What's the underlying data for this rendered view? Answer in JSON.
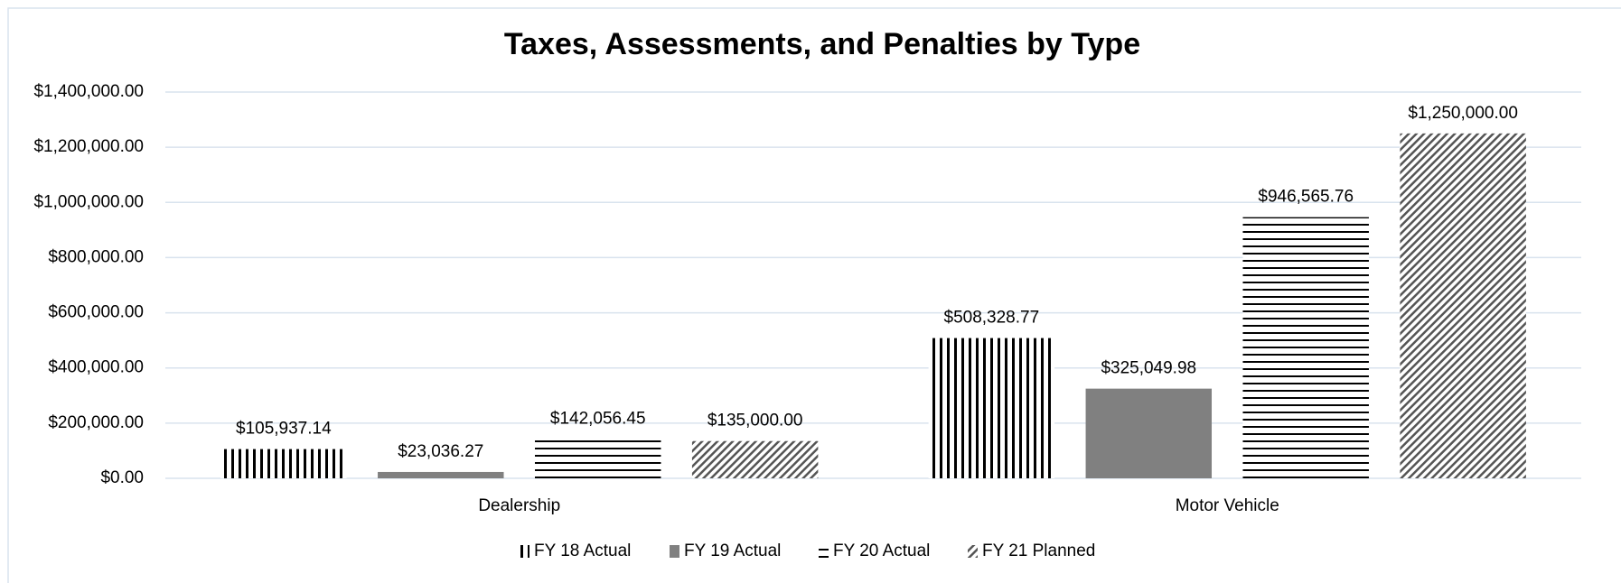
{
  "chart_data": {
    "type": "bar",
    "title": "Taxes, Assessments, and Penalties by Type",
    "categories": [
      "Dealership",
      "Motor Vehicle"
    ],
    "series": [
      {
        "name": "FY 18 Actual",
        "color": "#000000",
        "pattern": "vertical",
        "values": [
          105937.14,
          508328.77
        ],
        "value_labels": [
          "$105,937.14",
          "$508,328.77"
        ]
      },
      {
        "name": "FY 19 Actual",
        "color": "#808080",
        "pattern": "solid",
        "values": [
          23036.27,
          325049.98
        ],
        "value_labels": [
          "$23,036.27",
          "$325,049.98"
        ]
      },
      {
        "name": "FY 20 Actual",
        "color": "#000000",
        "pattern": "horizontal",
        "values": [
          142056.45,
          946565.76
        ],
        "value_labels": [
          "$142,056.45",
          "$946,565.76"
        ]
      },
      {
        "name": "FY 21 Planned",
        "color": "#555555",
        "pattern": "diagonal",
        "values": [
          135000,
          1250000
        ],
        "value_labels": [
          "$135,000.00",
          "$1,250,000.00"
        ]
      }
    ],
    "ylim": [
      0,
      1400000
    ],
    "yticks": [
      {
        "value": 0,
        "label": "$0.00"
      },
      {
        "value": 200000,
        "label": "$200,000.00"
      },
      {
        "value": 400000,
        "label": "$400,000.00"
      },
      {
        "value": 600000,
        "label": "$600,000.00"
      },
      {
        "value": 800000,
        "label": "$800,000.00"
      },
      {
        "value": 1000000,
        "label": "$1,000,000.00"
      },
      {
        "value": 1200000,
        "label": "$1,200,000.00"
      },
      {
        "value": 1400000,
        "label": "$1,400,000.00"
      }
    ],
    "grid": true,
    "legend": "bottom"
  }
}
